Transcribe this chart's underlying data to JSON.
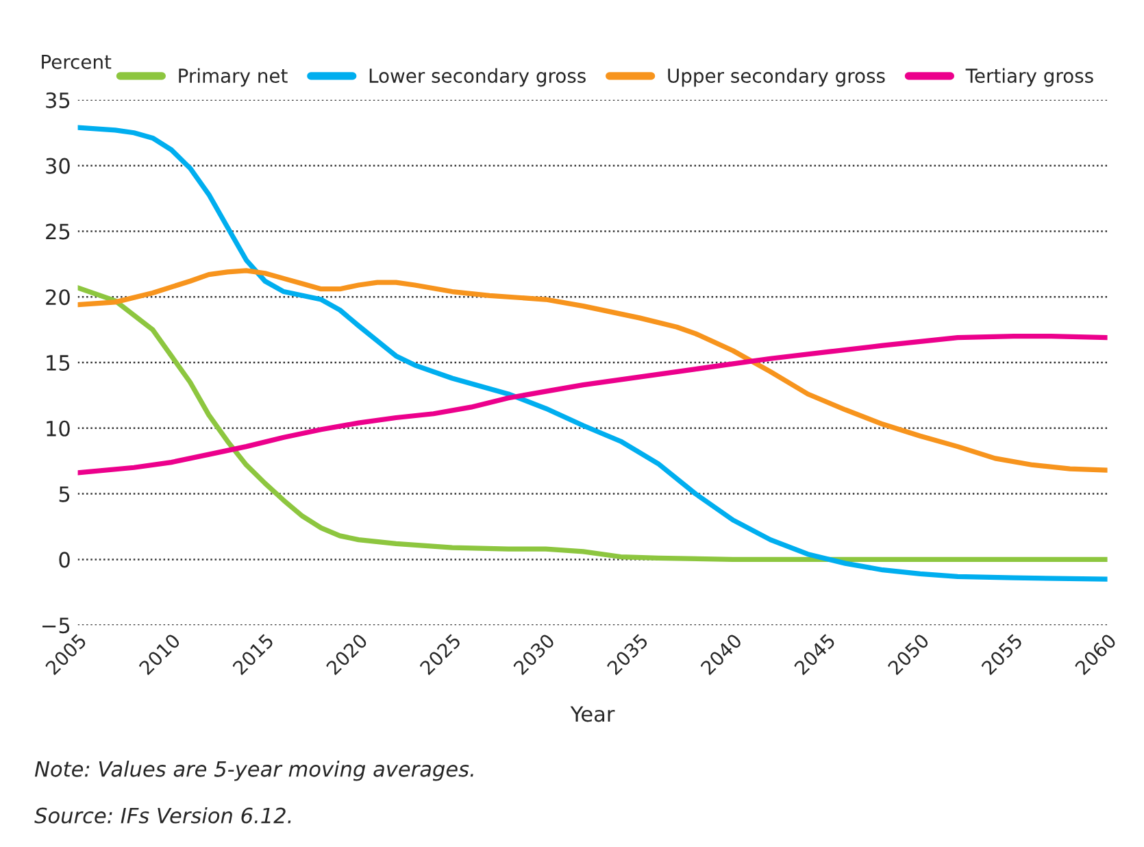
{
  "chart_data": {
    "type": "line",
    "xlabel": "Year",
    "ylabel": "Percent",
    "xlim": [
      2005,
      2060
    ],
    "xticks": [
      2005,
      2010,
      2015,
      2020,
      2025,
      2030,
      2035,
      2040,
      2045,
      2050,
      2055,
      2060
    ],
    "ylim": [
      -5,
      35
    ],
    "yticks": [
      {
        "value": -5,
        "label": "−5"
      },
      0,
      5,
      10,
      15,
      20,
      25,
      30,
      35
    ],
    "grid": "y",
    "legend": "top",
    "line_style": "solid",
    "marker": "none",
    "series": [
      {
        "name": "Primary net",
        "color": "#8dc63f",
        "x": [
          2005,
          2007,
          2009,
          2010,
          2011,
          2012,
          2013,
          2014,
          2015,
          2016,
          2017,
          2018,
          2019,
          2020,
          2022,
          2025,
          2028,
          2030,
          2032,
          2034,
          2036,
          2040,
          2060
        ],
        "values": [
          20.7,
          19.7,
          17.5,
          15.5,
          13.5,
          11,
          9,
          7.2,
          5.8,
          4.5,
          3.3,
          2.4,
          1.8,
          1.5,
          1.2,
          0.9,
          0.8,
          0.8,
          0.6,
          0.2,
          0.1,
          0,
          0
        ]
      },
      {
        "name": "Lower secondary gross",
        "color": "#00aeef",
        "x": [
          2005,
          2007,
          2008,
          2009,
          2010,
          2011,
          2012,
          2013,
          2014,
          2015,
          2016,
          2018,
          2019,
          2020,
          2022,
          2023,
          2025,
          2028,
          2030,
          2032,
          2034,
          2036,
          2038,
          2040,
          2042,
          2044,
          2046,
          2048,
          2050,
          2052,
          2055,
          2060
        ],
        "values": [
          32.9,
          32.7,
          32.5,
          32.1,
          31.2,
          29.8,
          27.8,
          25.3,
          22.8,
          21.2,
          20.4,
          19.8,
          19,
          17.8,
          15.5,
          14.8,
          13.8,
          12.6,
          11.5,
          10.2,
          9,
          7.3,
          5,
          3,
          1.5,
          0.4,
          -0.3,
          -0.8,
          -1.1,
          -1.3,
          -1.4,
          -1.5
        ]
      },
      {
        "name": "Upper secondary gross",
        "color": "#f7941d",
        "x": [
          2005,
          2007,
          2009,
          2011,
          2012,
          2013,
          2014,
          2015,
          2016,
          2017,
          2018,
          2019,
          2020,
          2021,
          2022,
          2023,
          2025,
          2027,
          2030,
          2032,
          2035,
          2037,
          2038,
          2040,
          2042,
          2044,
          2046,
          2048,
          2050,
          2052,
          2054,
          2056,
          2058,
          2060
        ],
        "values": [
          19.4,
          19.6,
          20.3,
          21.2,
          21.7,
          21.9,
          22,
          21.8,
          21.4,
          21,
          20.6,
          20.6,
          20.9,
          21.1,
          21.1,
          20.9,
          20.4,
          20.1,
          19.8,
          19.3,
          18.4,
          17.7,
          17.2,
          15.9,
          14.3,
          12.6,
          11.4,
          10.3,
          9.4,
          8.6,
          7.7,
          7.2,
          6.9,
          6.8
        ]
      },
      {
        "name": "Tertiary gross",
        "color": "#ec008c",
        "x": [
          2005,
          2008,
          2010,
          2012,
          2014,
          2016,
          2018,
          2020,
          2022,
          2024,
          2026,
          2028,
          2030,
          2032,
          2035,
          2038,
          2040,
          2042,
          2045,
          2048,
          2050,
          2052,
          2055,
          2057,
          2060
        ],
        "values": [
          6.6,
          7,
          7.4,
          8,
          8.6,
          9.3,
          9.9,
          10.4,
          10.8,
          11.1,
          11.6,
          12.3,
          12.8,
          13.3,
          13.9,
          14.5,
          14.9,
          15.3,
          15.8,
          16.3,
          16.6,
          16.9,
          17,
          17,
          16.9
        ]
      }
    ],
    "annotations": [
      "Note: Values are 5-year moving averages.",
      "Source: IFs Version 6.12."
    ]
  }
}
